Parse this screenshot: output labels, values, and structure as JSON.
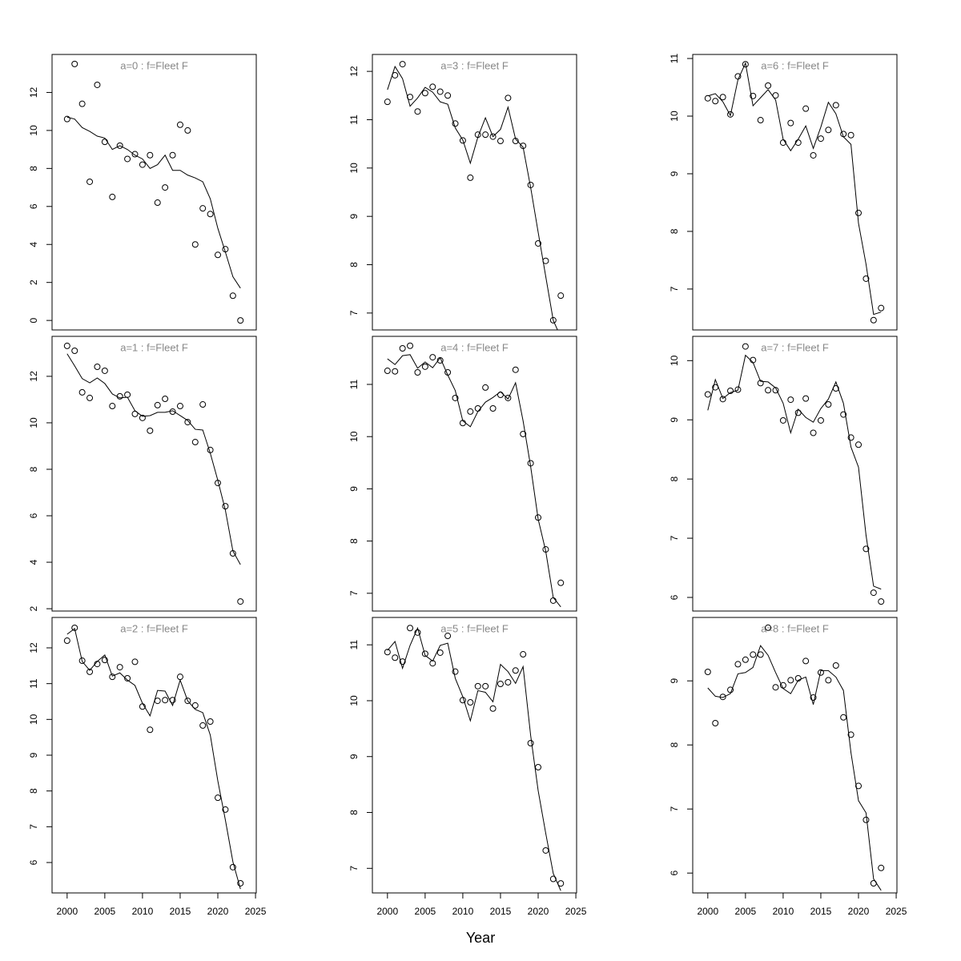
{
  "xlabel": "Year",
  "chart_data": [
    {
      "type": "line",
      "title": "a=0  :  f=Fleet F",
      "x": [
        2000,
        2001,
        2002,
        2003,
        2004,
        2005,
        2006,
        2007,
        2008,
        2009,
        2010,
        2011,
        2012,
        2013,
        2014,
        2015,
        2016,
        2017,
        2018,
        2019,
        2020,
        2021,
        2022,
        2023
      ],
      "series": [
        {
          "style": "points",
          "color": "#000000",
          "values": [
            10.6,
            13.5,
            11.4,
            7.3,
            12.4,
            9.4,
            6.5,
            9.2,
            8.5,
            8.75,
            8.2,
            8.7,
            6.2,
            7.0,
            8.7,
            10.3,
            10.0,
            4.0,
            5.9,
            5.6,
            3.45,
            3.75,
            1.3,
            0.0
          ]
        },
        {
          "style": "line",
          "color": "#000000",
          "values": [
            10.7,
            10.6,
            10.15,
            9.95,
            9.7,
            9.6,
            9.0,
            9.2,
            9.0,
            8.7,
            8.5,
            8.0,
            8.2,
            8.7,
            7.9,
            7.9,
            7.65,
            7.5,
            7.3,
            6.4,
            4.85,
            3.6,
            2.3,
            1.7
          ]
        }
      ],
      "xlim": [
        1998,
        2025.1
      ],
      "ylim": [
        -0.5,
        14
      ],
      "yticks": [
        0,
        2,
        4,
        6,
        8,
        10,
        12
      ]
    },
    {
      "type": "line",
      "title": "a=1  :  f=Fleet F",
      "x": [
        2000,
        2001,
        2002,
        2003,
        2004,
        2005,
        2006,
        2007,
        2008,
        2009,
        2010,
        2011,
        2012,
        2013,
        2014,
        2015,
        2016,
        2017,
        2018,
        2019,
        2020,
        2021,
        2022,
        2023
      ],
      "series": [
        {
          "style": "points",
          "color": "#000000",
          "values": [
            13.31,
            13.1,
            11.31,
            11.07,
            12.41,
            12.24,
            10.72,
            11.14,
            11.21,
            10.38,
            10.21,
            9.66,
            10.76,
            11.03,
            10.48,
            10.72,
            10.03,
            9.17,
            10.79,
            8.83,
            7.41,
            6.41,
            4.38,
            2.31
          ]
        },
        {
          "style": "line",
          "color": "#000000",
          "values": [
            12.97,
            12.45,
            11.9,
            11.72,
            11.93,
            11.69,
            11.24,
            11.07,
            11.1,
            10.52,
            10.28,
            10.31,
            10.45,
            10.45,
            10.52,
            10.31,
            10.1,
            9.72,
            9.69,
            8.69,
            7.52,
            6.24,
            4.48,
            3.9
          ]
        }
      ],
      "xlim": [
        1998,
        2025.1
      ],
      "ylim": [
        1.9,
        13.72
      ],
      "yticks": [
        2,
        4,
        6,
        8,
        10,
        12
      ]
    },
    {
      "type": "line",
      "title": "a=2  :  f=Fleet F",
      "x": [
        2000,
        2001,
        2002,
        2003,
        2004,
        2005,
        2006,
        2007,
        2008,
        2009,
        2010,
        2011,
        2012,
        2013,
        2014,
        2015,
        2016,
        2017,
        2018,
        2019,
        2020,
        2021,
        2022,
        2023
      ],
      "series": [
        {
          "style": "points",
          "color": "#000000",
          "values": [
            12.2,
            12.56,
            11.64,
            11.33,
            11.55,
            11.66,
            11.19,
            11.46,
            11.15,
            11.61,
            10.36,
            9.71,
            10.52,
            10.54,
            10.54,
            11.19,
            10.52,
            10.39,
            9.83,
            9.94,
            7.81,
            7.48,
            5.87,
            5.42
          ]
        },
        {
          "style": "line",
          "color": "#000000",
          "values": [
            12.38,
            12.54,
            11.62,
            11.37,
            11.62,
            11.8,
            11.21,
            11.3,
            11.1,
            10.95,
            10.45,
            10.1,
            10.81,
            10.79,
            10.39,
            11.1,
            10.52,
            10.28,
            10.19,
            9.56,
            8.28,
            7.19,
            6.02,
            5.26
          ]
        }
      ],
      "xlim": [
        1998,
        2025.1
      ],
      "xticks": [
        2000,
        2005,
        2010,
        2015,
        2020,
        2025
      ],
      "ylim": [
        5.15,
        12.85
      ],
      "yticks": [
        6,
        7,
        8,
        9,
        10,
        11,
        12
      ]
    },
    {
      "type": "line",
      "title": "a=3  :  f=Fleet F",
      "x": [
        2000,
        2001,
        2002,
        2003,
        2004,
        2005,
        2006,
        2007,
        2008,
        2009,
        2010,
        2011,
        2012,
        2013,
        2014,
        2015,
        2016,
        2017,
        2018,
        2019,
        2020,
        2021,
        2022,
        2023
      ],
      "series": [
        {
          "style": "points",
          "color": "#000000",
          "values": [
            11.37,
            11.92,
            12.15,
            11.47,
            11.17,
            11.55,
            11.68,
            11.58,
            11.5,
            10.92,
            10.57,
            9.8,
            10.69,
            10.69,
            10.65,
            10.56,
            11.45,
            10.56,
            10.46,
            9.65,
            8.44,
            8.08,
            6.85,
            7.36
          ]
        },
        {
          "style": "line",
          "color": "#000000",
          "values": [
            11.62,
            12.1,
            11.85,
            11.28,
            11.45,
            11.67,
            11.57,
            11.37,
            11.32,
            10.83,
            10.58,
            10.1,
            10.64,
            11.04,
            10.65,
            10.8,
            11.26,
            10.6,
            10.43,
            9.6,
            8.67,
            7.76,
            6.85,
            6.5
          ]
        }
      ],
      "xlim": [
        1998,
        2025.1
      ],
      "ylim": [
        6.65,
        12.35
      ],
      "yticks": [
        7,
        8,
        9,
        10,
        11,
        12
      ]
    },
    {
      "type": "line",
      "title": "a=4  :  f=Fleet F",
      "x": [
        2000,
        2001,
        2002,
        2003,
        2004,
        2005,
        2006,
        2007,
        2008,
        2009,
        2010,
        2011,
        2012,
        2013,
        2014,
        2015,
        2016,
        2017,
        2018,
        2019,
        2020,
        2021,
        2022,
        2023
      ],
      "series": [
        {
          "style": "points",
          "color": "#000000",
          "values": [
            11.26,
            11.25,
            11.69,
            11.74,
            11.23,
            11.34,
            11.52,
            11.46,
            11.23,
            10.74,
            10.26,
            10.48,
            10.54,
            10.94,
            10.54,
            10.8,
            10.74,
            11.28,
            10.05,
            9.49,
            8.45,
            7.84,
            6.86,
            7.2
          ]
        },
        {
          "style": "line",
          "color": "#000000",
          "values": [
            11.49,
            11.38,
            11.55,
            11.57,
            11.31,
            11.43,
            11.32,
            11.51,
            11.18,
            10.88,
            10.3,
            10.19,
            10.48,
            10.66,
            10.75,
            10.86,
            10.72,
            11.03,
            10.3,
            9.43,
            8.42,
            7.81,
            6.92,
            6.74
          ]
        }
      ],
      "xlim": [
        1998,
        2025.1
      ],
      "ylim": [
        6.66,
        11.92
      ],
      "yticks": [
        7,
        8,
        9,
        10,
        11
      ]
    },
    {
      "type": "line",
      "title": "a=5  :  f=Fleet F",
      "x": [
        2000,
        2001,
        2002,
        2003,
        2004,
        2005,
        2006,
        2007,
        2008,
        2009,
        2010,
        2011,
        2012,
        2013,
        2014,
        2015,
        2016,
        2017,
        2018,
        2019,
        2020,
        2021,
        2022,
        2023
      ],
      "series": [
        {
          "style": "points",
          "color": "#000000",
          "values": [
            10.87,
            10.77,
            10.7,
            11.3,
            11.22,
            10.84,
            10.67,
            10.86,
            11.16,
            10.52,
            10.01,
            9.97,
            10.26,
            10.26,
            9.86,
            10.3,
            10.33,
            10.54,
            10.83,
            9.24,
            8.81,
            7.32,
            6.81,
            6.73
          ]
        },
        {
          "style": "line",
          "color": "#000000",
          "values": [
            10.9,
            11.06,
            10.58,
            10.99,
            11.3,
            10.81,
            10.71,
            10.99,
            11.03,
            10.4,
            10.07,
            9.64,
            10.18,
            10.15,
            9.98,
            10.65,
            10.52,
            10.31,
            10.61,
            9.38,
            8.39,
            7.63,
            6.91,
            6.6
          ]
        }
      ],
      "xlim": [
        1998,
        2025.1
      ],
      "xticks": [
        2000,
        2005,
        2010,
        2015,
        2020,
        2025
      ],
      "ylim": [
        6.56,
        11.49
      ],
      "yticks": [
        7,
        8,
        9,
        10,
        11
      ]
    },
    {
      "type": "line",
      "title": "a=6  :  f=Fleet F",
      "x": [
        2000,
        2001,
        2002,
        2003,
        2004,
        2005,
        2006,
        2007,
        2008,
        2009,
        2010,
        2011,
        2012,
        2013,
        2014,
        2015,
        2016,
        2017,
        2018,
        2019,
        2020,
        2021,
        2022,
        2023
      ],
      "series": [
        {
          "style": "points",
          "color": "#000000",
          "values": [
            10.31,
            10.26,
            10.33,
            10.03,
            10.69,
            10.9,
            10.35,
            9.93,
            10.53,
            10.36,
            9.54,
            9.88,
            9.54,
            10.13,
            9.32,
            9.61,
            9.76,
            10.19,
            9.69,
            9.67,
            8.32,
            7.18,
            6.46,
            6.67
          ]
        },
        {
          "style": "line",
          "color": "#000000",
          "values": [
            10.35,
            10.39,
            10.25,
            10.01,
            10.63,
            10.92,
            10.18,
            10.32,
            10.46,
            10.28,
            9.6,
            9.4,
            9.6,
            9.83,
            9.44,
            9.81,
            10.24,
            10.04,
            9.64,
            9.51,
            8.14,
            7.43,
            6.56,
            6.6
          ]
        }
      ],
      "xlim": [
        1998,
        2025.1
      ],
      "ylim": [
        6.29,
        11.07
      ],
      "yticks": [
        7,
        8,
        9,
        10,
        11
      ]
    },
    {
      "type": "line",
      "title": "a=7  :  f=Fleet F",
      "x": [
        2000,
        2001,
        2002,
        2003,
        2004,
        2005,
        2006,
        2007,
        2008,
        2009,
        2010,
        2011,
        2012,
        2013,
        2014,
        2015,
        2016,
        2017,
        2018,
        2019,
        2020,
        2021,
        2022,
        2023
      ],
      "series": [
        {
          "style": "points",
          "color": "#000000",
          "values": [
            9.43,
            9.55,
            9.35,
            9.49,
            9.51,
            10.24,
            10.01,
            9.62,
            9.5,
            9.5,
            8.99,
            9.34,
            9.12,
            9.36,
            8.78,
            8.99,
            9.26,
            9.53,
            9.09,
            8.7,
            8.58,
            6.82,
            6.08,
            5.93
          ]
        },
        {
          "style": "line",
          "color": "#000000",
          "values": [
            9.16,
            9.68,
            9.36,
            9.46,
            9.5,
            10.09,
            9.97,
            9.65,
            9.64,
            9.54,
            9.28,
            8.78,
            9.18,
            9.04,
            8.96,
            9.19,
            9.35,
            9.64,
            9.28,
            8.54,
            8.2,
            7.05,
            6.19,
            6.14
          ]
        }
      ],
      "xlim": [
        1998,
        2025.1
      ],
      "ylim": [
        5.77,
        10.41
      ],
      "yticks": [
        6,
        7,
        8,
        9,
        10
      ]
    },
    {
      "type": "line",
      "title": "a=8  :  f=Fleet F",
      "x": [
        2000,
        2001,
        2002,
        2003,
        2004,
        2005,
        2006,
        2007,
        2008,
        2009,
        2010,
        2011,
        2012,
        2013,
        2014,
        2015,
        2016,
        2017,
        2018,
        2019,
        2020,
        2021,
        2022,
        2023
      ],
      "series": [
        {
          "style": "points",
          "color": "#000000",
          "values": [
            9.14,
            8.34,
            8.75,
            8.86,
            9.26,
            9.33,
            9.41,
            9.41,
            9.83,
            8.9,
            8.93,
            9.01,
            9.04,
            9.31,
            8.74,
            9.13,
            9.01,
            9.24,
            8.43,
            8.16,
            7.36,
            6.83,
            5.84,
            6.08
          ]
        },
        {
          "style": "line",
          "color": "#000000",
          "values": [
            8.89,
            8.76,
            8.74,
            8.8,
            9.11,
            9.13,
            9.21,
            9.55,
            9.4,
            9.13,
            8.88,
            8.8,
            9.01,
            9.06,
            8.63,
            9.16,
            9.16,
            9.06,
            8.85,
            7.88,
            7.13,
            6.94,
            5.91,
            5.73
          ]
        }
      ],
      "xlim": [
        1998,
        2025.1
      ],
      "xticks": [
        2000,
        2005,
        2010,
        2015,
        2020,
        2025
      ],
      "ylim": [
        5.69,
        9.99
      ],
      "yticks": [
        6,
        7,
        8,
        9
      ]
    }
  ]
}
